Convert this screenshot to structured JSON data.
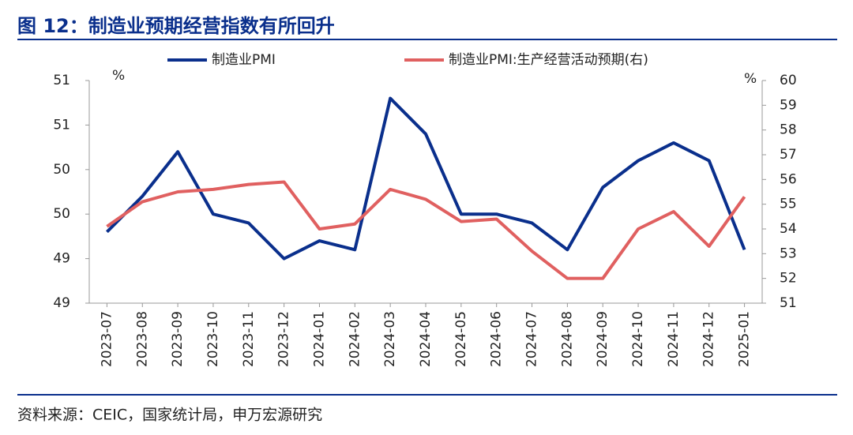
{
  "chart_data": {
    "type": "line",
    "title": "图 12：制造业预期经营指数有所回升",
    "source": "资料来源：CEIC，国家统计局，申万宏源研究",
    "y_unit": "%",
    "y2_unit": "%",
    "categories": [
      "2023-07",
      "2023-08",
      "2023-09",
      "2023-10",
      "2023-11",
      "2023-12",
      "2024-01",
      "2024-02",
      "2024-03",
      "2024-04",
      "2024-05",
      "2024-06",
      "2024-07",
      "2024-08",
      "2024-09",
      "2024-10",
      "2024-11",
      "2024-12",
      "2025-01"
    ],
    "series": [
      {
        "name": "制造业PMI",
        "color": "#0a2f8c",
        "values": [
          49.3,
          49.7,
          50.2,
          49.5,
          49.4,
          49.0,
          49.2,
          49.1,
          50.8,
          50.4,
          49.5,
          49.5,
          49.4,
          49.1,
          49.8,
          50.1,
          50.3,
          50.1,
          49.1
        ]
      },
      {
        "name": "制造业PMI:生产经营活动预期(右)",
        "color": "#e06060",
        "axis": "y2",
        "values": [
          54.1,
          55.1,
          55.5,
          55.6,
          55.8,
          55.9,
          54.0,
          54.2,
          55.6,
          55.2,
          54.3,
          54.4,
          53.1,
          52.0,
          52.0,
          54.0,
          54.7,
          53.3,
          55.3
        ]
      }
    ],
    "ylim": [
      48.5,
      51.0
    ],
    "yticks": [
      {
        "value": 48.5,
        "label": "49"
      },
      {
        "value": 49.0,
        "label": "49"
      },
      {
        "value": 49.5,
        "label": "50"
      },
      {
        "value": 50.0,
        "label": "50"
      },
      {
        "value": 50.5,
        "label": "51"
      },
      {
        "value": 51.0,
        "label": "51"
      }
    ],
    "y2lim": [
      51,
      60
    ],
    "y2ticks": [
      51,
      52,
      53,
      54,
      55,
      56,
      57,
      58,
      59,
      60
    ],
    "legend": "top"
  }
}
